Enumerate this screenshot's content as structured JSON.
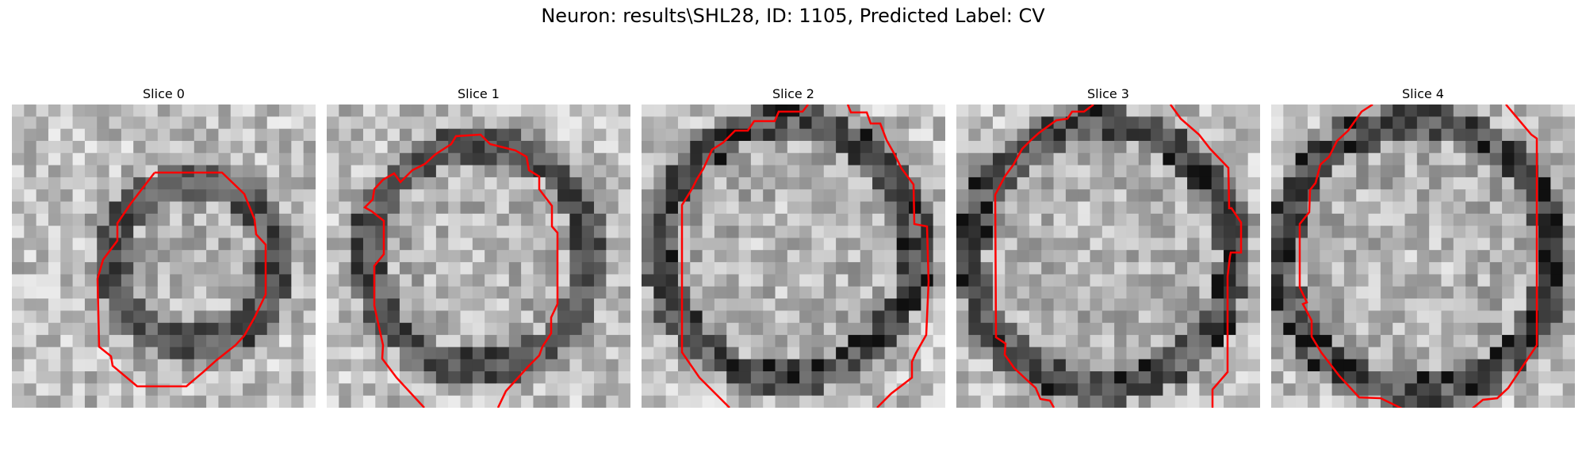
{
  "title": "Neuron: results\\SHL28, ID: 1105, Predicted Label: CV",
  "panels": [
    {
      "label": "Slice 0"
    },
    {
      "label": "Slice 1"
    },
    {
      "label": "Slice 2"
    },
    {
      "label": "Slice 3"
    },
    {
      "label": "Slice 4"
    }
  ],
  "colors": {
    "contour": "#ff0000",
    "background": "#ffffff"
  }
}
